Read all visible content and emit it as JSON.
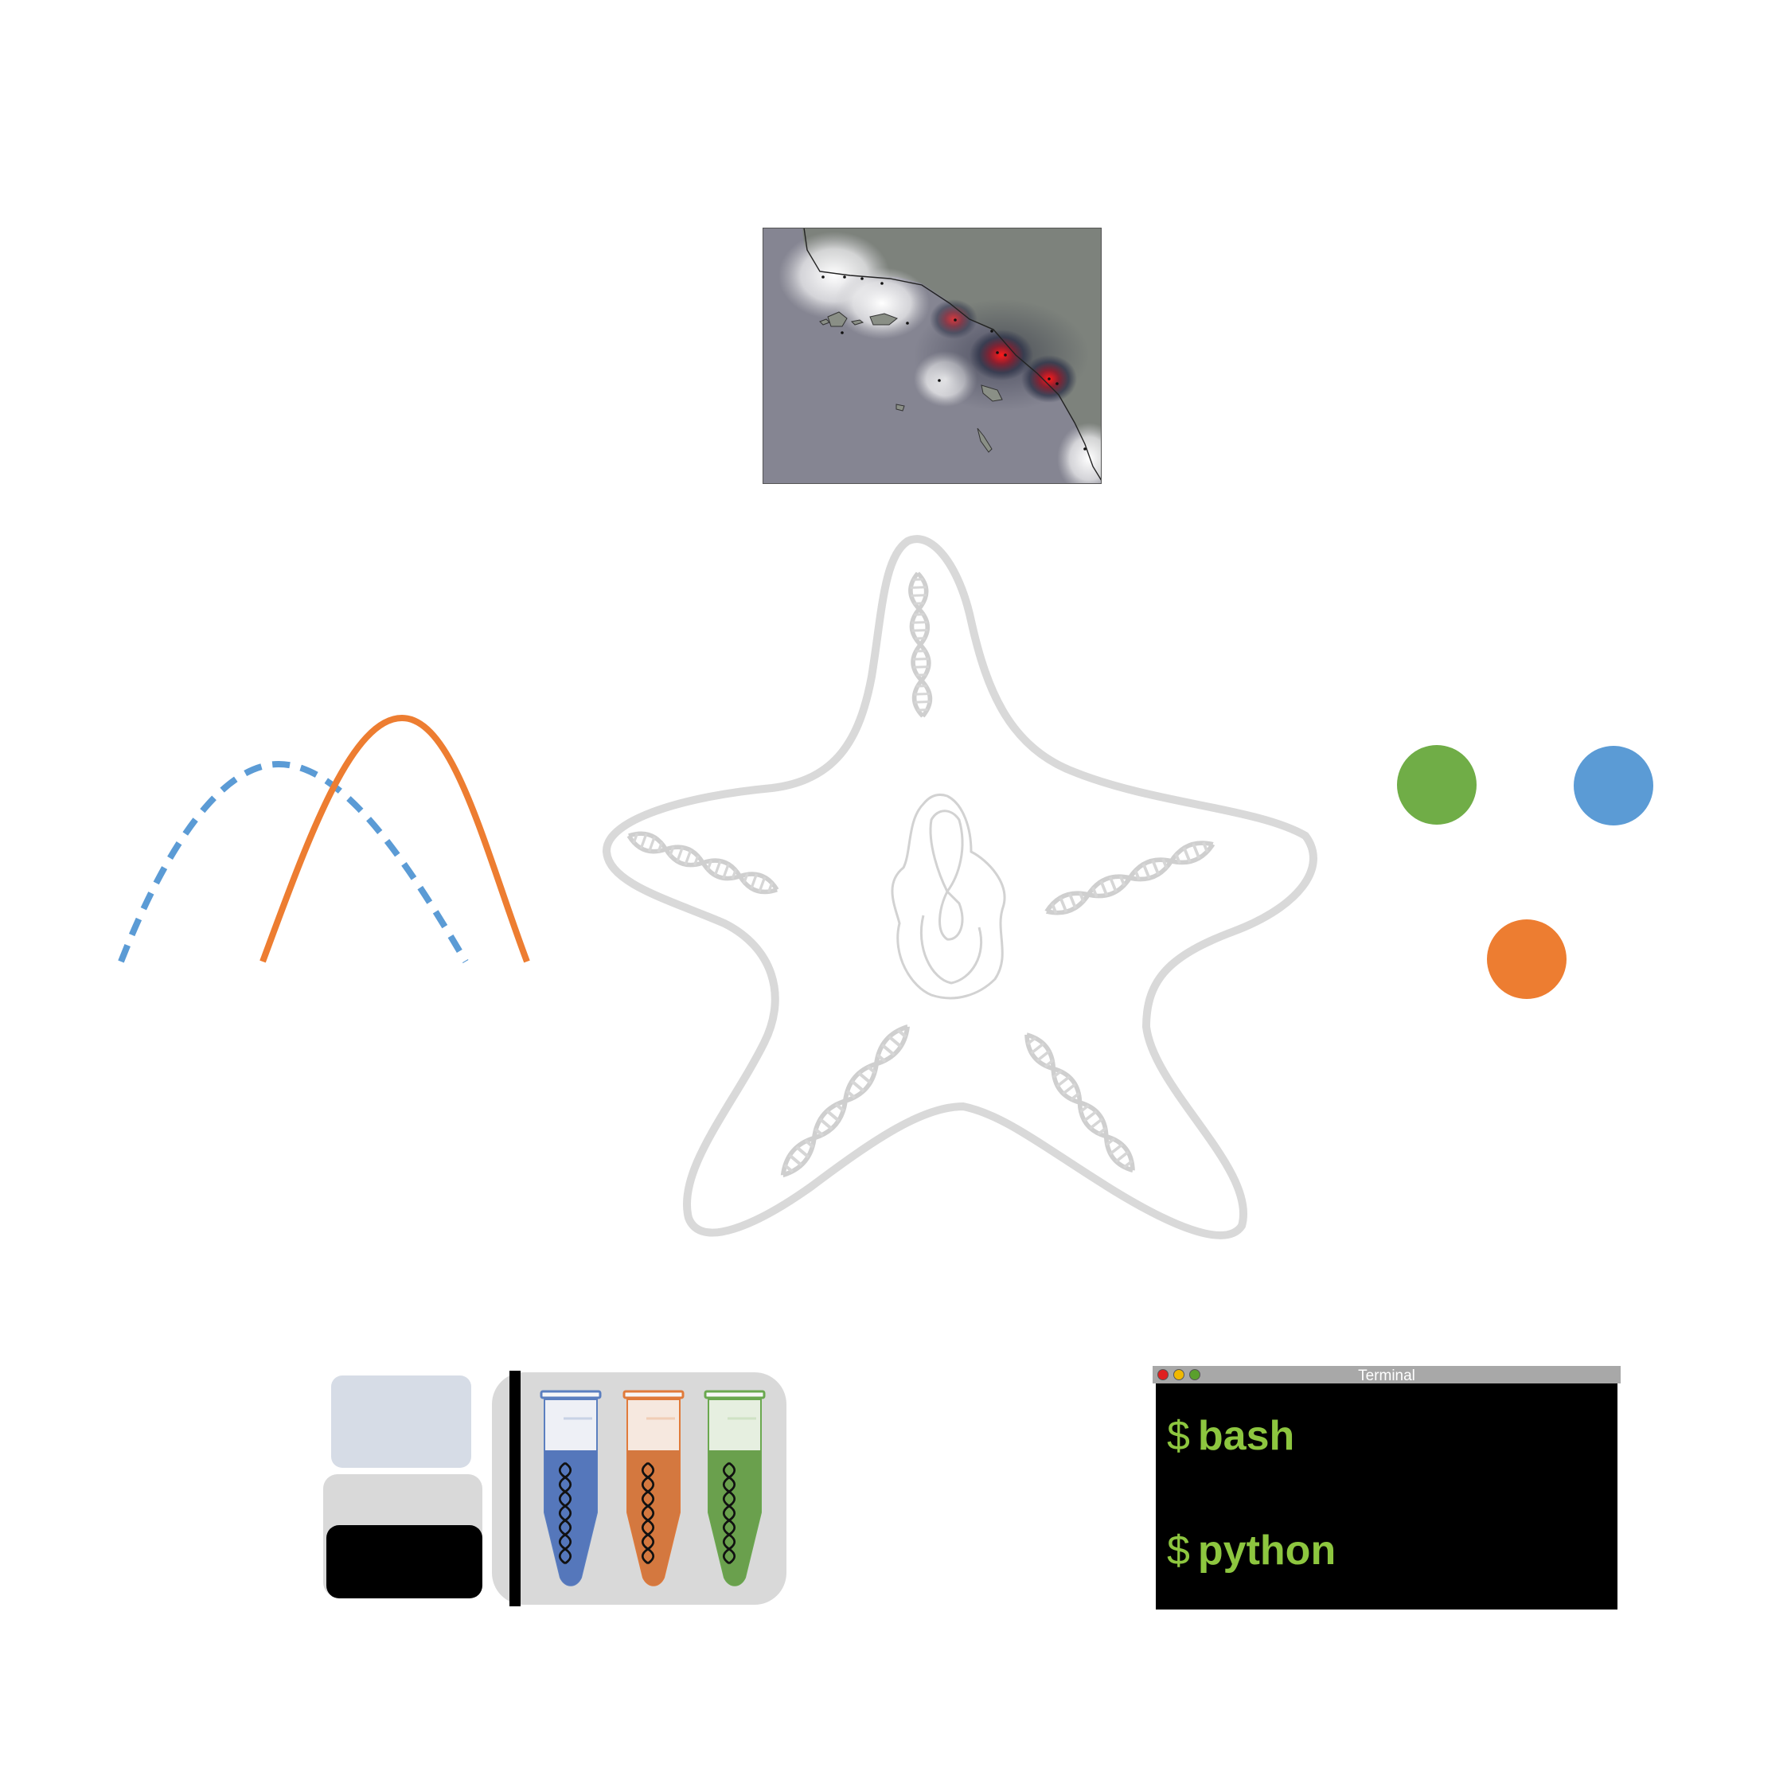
{
  "terminal": {
    "title": "Terminal",
    "commands": [
      {
        "prompt": "$",
        "text": "bash"
      },
      {
        "prompt": "$",
        "text": "python"
      }
    ],
    "text_color": "#8dc63f",
    "dots": [
      "#e02020",
      "#f0b800",
      "#5aa02c"
    ]
  },
  "colors": {
    "blue": "#5b9bd5",
    "orange": "#ed7d31",
    "green": "#70ad47",
    "starfish_outline": "#d9d9d9"
  },
  "icons": {
    "map": "coastline-heatmap-icon",
    "curves": "distribution-curves-icon",
    "starfish": "starfish-dna-icon",
    "dots": "colored-dots-icon",
    "sequencer": "sequencer-tubes-icon",
    "terminal": "terminal-window-icon"
  }
}
